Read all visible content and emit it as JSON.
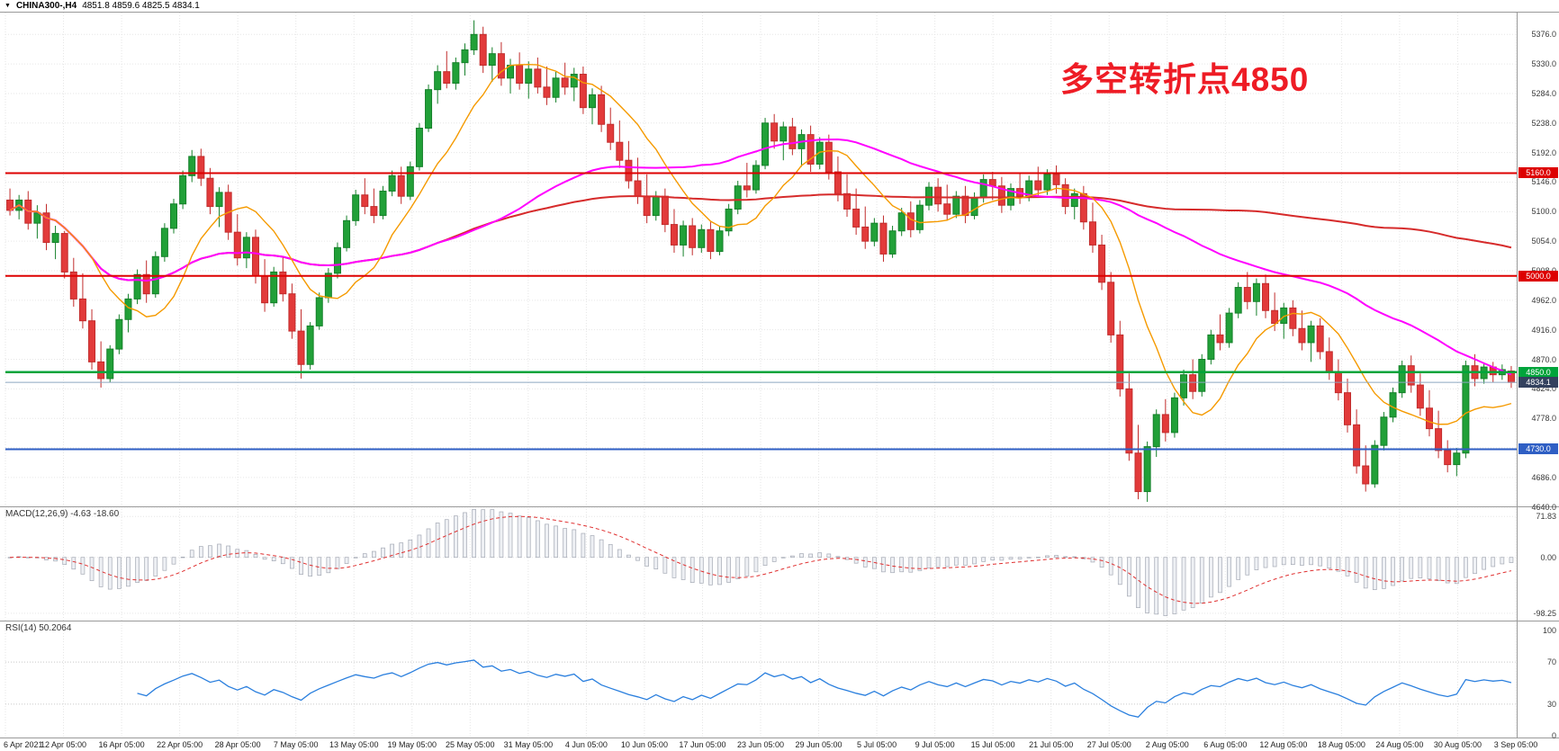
{
  "title_bar": {
    "dropdown_icon": "▼",
    "symbol": "CHINA300-,H4",
    "ohlc_text": "4851.8 4859.6 4825.5 4834.1"
  },
  "annotation": {
    "text": "多空转折点4850"
  },
  "macd_panel": {
    "label": "MACD(12,26,9) -4.63 -18.60",
    "axis_labels": [
      "71.83",
      "0.00",
      "-98.25"
    ],
    "axis_values": [
      71.83,
      0,
      -98.25
    ]
  },
  "rsi_panel": {
    "label": "RSI(14) 50.2064",
    "axis_labels": [
      "100",
      "70",
      "30",
      "0"
    ],
    "axis_values": [
      100,
      70,
      30,
      0
    ]
  },
  "levels": [
    {
      "label": "5160.0",
      "value": 5160,
      "bg": "#dd0000",
      "line": "#dd0000",
      "width": 2
    },
    {
      "label": "5000.0",
      "value": 5000,
      "bg": "#dd0000",
      "line": "#dd0000",
      "width": 2
    },
    {
      "label": "4850.0",
      "value": 4850,
      "bg": "#00a43b",
      "line": "#00a43b",
      "width": 2.5
    },
    {
      "label": "4834.1",
      "value": 4834.1,
      "bg": "#33415e",
      "line": "#8ca6c0",
      "width": 1
    },
    {
      "label": "4730.0",
      "value": 4730,
      "bg": "#2f5fc4",
      "line": "#2f5fc4",
      "width": 2
    }
  ],
  "colors": {
    "bull": "#21a038",
    "bull_stroke": "#15802a",
    "bear": "#e23a3a",
    "bear_stroke": "#c12c2c",
    "ma_fast": "#f59a00",
    "ma_mid": "#ff00ff",
    "ma_slow": "#d62b2b",
    "macd_bar_fill": "#eef0f4",
    "macd_bar_stroke": "#a4a9b4",
    "macd_signal": "#e03030",
    "rsi_line": "#2a7fde",
    "grid": "#e6e6e6",
    "panel_border": "#9a9a9a",
    "annotation": "#ee1c25",
    "price_badge_bg": "#33415e",
    "price_line": "#8ca6c0"
  },
  "chart_data": {
    "type": "candlestick",
    "symbol": "CHINA300-",
    "timeframe": "H4",
    "title": "CHINA300-,H4",
    "current_ohlc": {
      "open": 4851.8,
      "high": 4859.6,
      "low": 4825.5,
      "close": 4834.1
    },
    "y_range": [
      4641,
      5410
    ],
    "y_tick_values": [
      5376,
      5330,
      5284,
      5238,
      5192,
      5146,
      5100,
      5054,
      5008,
      4962,
      4916,
      4870,
      4824,
      4778,
      4732,
      4686,
      4640
    ],
    "y_tick_labels": [
      "5376.0",
      "5330.0",
      "5284.0",
      "5238.0",
      "5192.0",
      "5146.0",
      "5100.0",
      "5054.0",
      "5008.0",
      "4962.0",
      "4916.0",
      "4870.0",
      "4824.0",
      "4778.0",
      "4732.0",
      "4686.0",
      "4640.0"
    ],
    "horizontal_levels": [
      5160,
      5000,
      4850,
      4834.1,
      4730
    ],
    "moving_average_periods": {
      "fast": 10,
      "mid": 48,
      "slow": 120
    },
    "macd": {
      "fast": 12,
      "slow": 26,
      "signal": 9,
      "current_macd": -4.63,
      "current_signal": -18.6,
      "y_range": [
        -111,
        88
      ],
      "axis_marks": [
        71.83,
        0,
        -98.25
      ]
    },
    "rsi": {
      "period": 14,
      "current": 50.2064,
      "overbought": 70,
      "oversold": 30,
      "y_range": [
        0,
        100
      ]
    },
    "x_tick_labels": [
      "6 Apr 2021",
      "12 Apr 05:00",
      "16 Apr 05:00",
      "22 Apr 05:00",
      "28 Apr 05:00",
      "7 May 05:00",
      "13 May 05:00",
      "19 May 05:00",
      "25 May 05:00",
      "31 May 05:00",
      "4 Jun 05:00",
      "10 Jun 05:00",
      "17 Jun 05:00",
      "23 Jun 05:00",
      "29 Jun 05:00",
      "5 Jul 05:00",
      "9 Jul 05:00",
      "15 Jul 05:00",
      "21 Jul 05:00",
      "27 Jul 05:00",
      "2 Aug 05:00",
      "6 Aug 05:00",
      "12 Aug 05:00",
      "18 Aug 05:00",
      "24 Aug 05:00",
      "30 Aug 05:00",
      "3 Sep 05:00"
    ],
    "candles": [
      [
        5118,
        5136,
        5094,
        5102
      ],
      [
        5102,
        5126,
        5088,
        5118
      ],
      [
        5118,
        5132,
        5072,
        5082
      ],
      [
        5082,
        5110,
        5058,
        5098
      ],
      [
        5098,
        5112,
        5040,
        5052
      ],
      [
        5052,
        5078,
        5026,
        5066
      ],
      [
        5066,
        5070,
        4996,
        5006
      ],
      [
        5006,
        5028,
        4952,
        4964
      ],
      [
        4964,
        5004,
        4918,
        4930
      ],
      [
        4930,
        4948,
        4854,
        4866
      ],
      [
        4866,
        4898,
        4826,
        4840
      ],
      [
        4840,
        4892,
        4834,
        4886
      ],
      [
        4886,
        4940,
        4878,
        4932
      ],
      [
        4932,
        4972,
        4912,
        4964
      ],
      [
        4964,
        5010,
        4956,
        5002
      ],
      [
        5002,
        5024,
        4958,
        4972
      ],
      [
        4972,
        5038,
        4966,
        5030
      ],
      [
        5030,
        5082,
        5022,
        5074
      ],
      [
        5074,
        5120,
        5066,
        5112
      ],
      [
        5112,
        5164,
        5104,
        5156
      ],
      [
        5156,
        5196,
        5146,
        5186
      ],
      [
        5186,
        5198,
        5140,
        5152
      ],
      [
        5152,
        5168,
        5096,
        5108
      ],
      [
        5108,
        5138,
        5076,
        5130
      ],
      [
        5130,
        5142,
        5056,
        5068
      ],
      [
        5068,
        5096,
        5016,
        5028
      ],
      [
        5028,
        5068,
        5012,
        5060
      ],
      [
        5060,
        5072,
        4988,
        5000
      ],
      [
        5000,
        5026,
        4944,
        4958
      ],
      [
        4958,
        5014,
        4952,
        5006
      ],
      [
        5006,
        5030,
        4960,
        4972
      ],
      [
        4972,
        4988,
        4902,
        4914
      ],
      [
        4914,
        4948,
        4840,
        4862
      ],
      [
        4862,
        4928,
        4854,
        4922
      ],
      [
        4922,
        4974,
        4916,
        4966
      ],
      [
        4966,
        5012,
        4958,
        5004
      ],
      [
        5004,
        5052,
        4996,
        5044
      ],
      [
        5044,
        5094,
        5038,
        5086
      ],
      [
        5086,
        5134,
        5078,
        5126
      ],
      [
        5126,
        5152,
        5096,
        5108
      ],
      [
        5108,
        5136,
        5082,
        5094
      ],
      [
        5094,
        5140,
        5088,
        5132
      ],
      [
        5132,
        5164,
        5124,
        5156
      ],
      [
        5156,
        5170,
        5112,
        5124
      ],
      [
        5124,
        5178,
        5118,
        5170
      ],
      [
        5170,
        5238,
        5164,
        5230
      ],
      [
        5230,
        5298,
        5224,
        5290
      ],
      [
        5290,
        5328,
        5268,
        5318
      ],
      [
        5318,
        5350,
        5292,
        5300
      ],
      [
        5300,
        5340,
        5290,
        5332
      ],
      [
        5332,
        5362,
        5312,
        5352
      ],
      [
        5352,
        5398,
        5344,
        5376
      ],
      [
        5376,
        5388,
        5316,
        5328
      ],
      [
        5328,
        5356,
        5302,
        5346
      ],
      [
        5346,
        5364,
        5296,
        5308
      ],
      [
        5308,
        5338,
        5284,
        5328
      ],
      [
        5328,
        5348,
        5290,
        5300
      ],
      [
        5300,
        5334,
        5276,
        5322
      ],
      [
        5322,
        5340,
        5284,
        5294
      ],
      [
        5294,
        5326,
        5266,
        5278
      ],
      [
        5278,
        5318,
        5270,
        5308
      ],
      [
        5308,
        5332,
        5282,
        5294
      ],
      [
        5294,
        5324,
        5272,
        5314
      ],
      [
        5314,
        5326,
        5252,
        5262
      ],
      [
        5262,
        5292,
        5236,
        5282
      ],
      [
        5282,
        5296,
        5224,
        5236
      ],
      [
        5236,
        5262,
        5196,
        5208
      ],
      [
        5208,
        5242,
        5168,
        5180
      ],
      [
        5180,
        5210,
        5136,
        5148
      ],
      [
        5148,
        5184,
        5112,
        5124
      ],
      [
        5124,
        5158,
        5082,
        5094
      ],
      [
        5094,
        5132,
        5086,
        5124
      ],
      [
        5124,
        5136,
        5068,
        5080
      ],
      [
        5080,
        5104,
        5036,
        5048
      ],
      [
        5048,
        5086,
        5030,
        5078
      ],
      [
        5078,
        5090,
        5032,
        5044
      ],
      [
        5044,
        5080,
        5036,
        5072
      ],
      [
        5072,
        5084,
        5026,
        5038
      ],
      [
        5038,
        5078,
        5032,
        5070
      ],
      [
        5070,
        5112,
        5062,
        5104
      ],
      [
        5104,
        5148,
        5096,
        5140
      ],
      [
        5140,
        5176,
        5122,
        5134
      ],
      [
        5134,
        5180,
        5128,
        5172
      ],
      [
        5172,
        5246,
        5166,
        5238
      ],
      [
        5238,
        5252,
        5198,
        5210
      ],
      [
        5210,
        5240,
        5180,
        5232
      ],
      [
        5232,
        5246,
        5188,
        5198
      ],
      [
        5198,
        5228,
        5170,
        5220
      ],
      [
        5220,
        5234,
        5162,
        5174
      ],
      [
        5174,
        5216,
        5166,
        5208
      ],
      [
        5208,
        5220,
        5150,
        5162
      ],
      [
        5162,
        5186,
        5116,
        5128
      ],
      [
        5128,
        5158,
        5092,
        5104
      ],
      [
        5104,
        5136,
        5064,
        5076
      ],
      [
        5076,
        5108,
        5042,
        5054
      ],
      [
        5054,
        5090,
        5046,
        5082
      ],
      [
        5082,
        5094,
        5022,
        5034
      ],
      [
        5034,
        5078,
        5028,
        5070
      ],
      [
        5070,
        5106,
        5062,
        5098
      ],
      [
        5098,
        5116,
        5060,
        5072
      ],
      [
        5072,
        5118,
        5066,
        5110
      ],
      [
        5110,
        5146,
        5102,
        5138
      ],
      [
        5138,
        5152,
        5100,
        5112
      ],
      [
        5112,
        5142,
        5086,
        5096
      ],
      [
        5096,
        5132,
        5090,
        5124
      ],
      [
        5124,
        5140,
        5082,
        5094
      ],
      [
        5094,
        5130,
        5088,
        5122
      ],
      [
        5122,
        5158,
        5114,
        5150
      ],
      [
        5150,
        5162,
        5118,
        5140
      ],
      [
        5140,
        5154,
        5098,
        5110
      ],
      [
        5110,
        5144,
        5102,
        5136
      ],
      [
        5136,
        5160,
        5112,
        5124
      ],
      [
        5124,
        5156,
        5116,
        5148
      ],
      [
        5148,
        5170,
        5122,
        5134
      ],
      [
        5134,
        5166,
        5126,
        5158
      ],
      [
        5158,
        5172,
        5128,
        5142
      ],
      [
        5142,
        5152,
        5096,
        5108
      ],
      [
        5108,
        5136,
        5088,
        5128
      ],
      [
        5128,
        5140,
        5072,
        5084
      ],
      [
        5084,
        5114,
        5036,
        5048
      ],
      [
        5048,
        5064,
        4978,
        4990
      ],
      [
        4990,
        5006,
        4896,
        4908
      ],
      [
        4908,
        4930,
        4812,
        4824
      ],
      [
        4824,
        4848,
        4712,
        4724
      ],
      [
        4724,
        4768,
        4652,
        4664
      ],
      [
        4664,
        4742,
        4648,
        4734
      ],
      [
        4734,
        4792,
        4718,
        4784
      ],
      [
        4784,
        4808,
        4742,
        4756
      ],
      [
        4756,
        4818,
        4748,
        4810
      ],
      [
        4810,
        4854,
        4798,
        4846
      ],
      [
        4846,
        4870,
        4808,
        4820
      ],
      [
        4820,
        4878,
        4812,
        4870
      ],
      [
        4870,
        4916,
        4862,
        4908
      ],
      [
        4908,
        4940,
        4884,
        4896
      ],
      [
        4896,
        4950,
        4888,
        4942
      ],
      [
        4942,
        4990,
        4934,
        4982
      ],
      [
        4982,
        5006,
        4948,
        4960
      ],
      [
        4960,
        4996,
        4938,
        4988
      ],
      [
        4988,
        5002,
        4934,
        4946
      ],
      [
        4946,
        4974,
        4914,
        4926
      ],
      [
        4926,
        4958,
        4902,
        4950
      ],
      [
        4950,
        4962,
        4906,
        4918
      ],
      [
        4918,
        4946,
        4884,
        4896
      ],
      [
        4896,
        4930,
        4866,
        4922
      ],
      [
        4922,
        4934,
        4870,
        4882
      ],
      [
        4882,
        4904,
        4838,
        4850
      ],
      [
        4850,
        4870,
        4806,
        4818
      ],
      [
        4818,
        4840,
        4756,
        4768
      ],
      [
        4768,
        4792,
        4692,
        4704
      ],
      [
        4704,
        4736,
        4664,
        4676
      ],
      [
        4676,
        4744,
        4670,
        4736
      ],
      [
        4736,
        4788,
        4728,
        4780
      ],
      [
        4780,
        4826,
        4772,
        4818
      ],
      [
        4818,
        4868,
        4810,
        4860
      ],
      [
        4860,
        4876,
        4818,
        4830
      ],
      [
        4830,
        4848,
        4782,
        4794
      ],
      [
        4794,
        4822,
        4750,
        4762
      ],
      [
        4762,
        4790,
        4716,
        4728
      ],
      [
        4728,
        4744,
        4694,
        4706
      ],
      [
        4706,
        4732,
        4688,
        4724
      ],
      [
        4724,
        4868,
        4716,
        4860
      ],
      [
        4860,
        4878,
        4828,
        4840
      ],
      [
        4840,
        4864,
        4832,
        4858
      ],
      [
        4858,
        4866,
        4834,
        4846
      ],
      [
        4846,
        4862,
        4838,
        4854
      ],
      [
        4851.8,
        4859.6,
        4825.5,
        4834.1
      ]
    ]
  }
}
